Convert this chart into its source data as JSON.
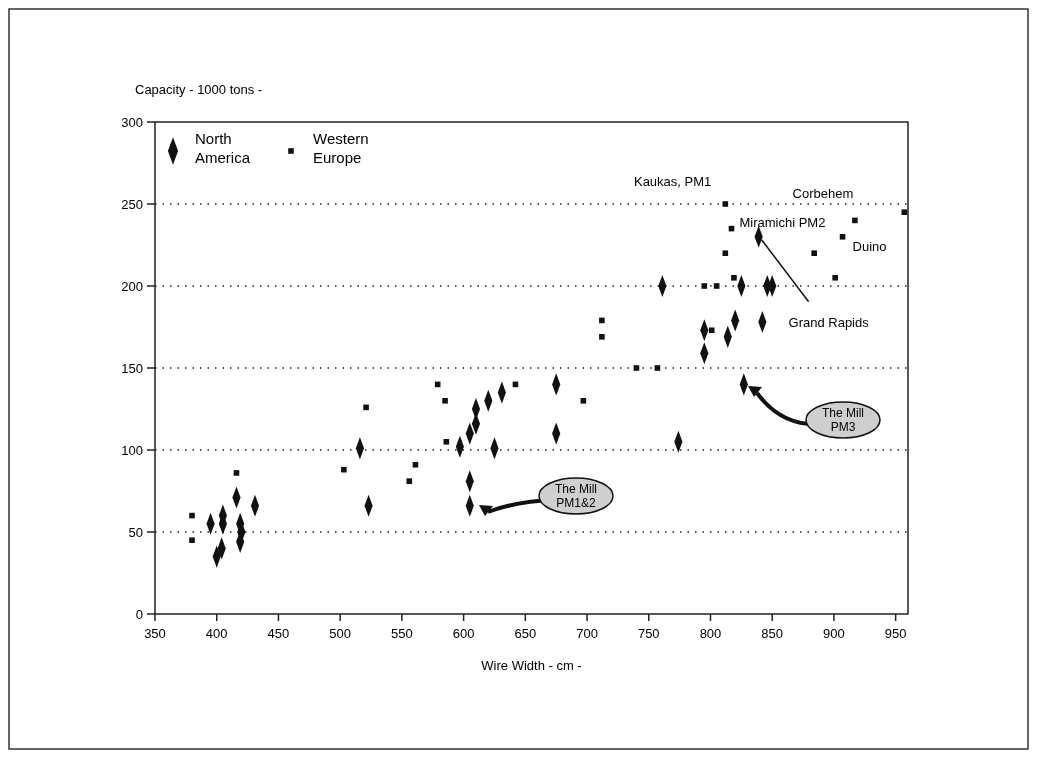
{
  "chart_data": {
    "type": "scatter",
    "xlabel": "Wire Width - cm -",
    "ylabel": "Capacity - 1000 tons -",
    "xlim": [
      350,
      960
    ],
    "xticks": [
      350,
      400,
      450,
      500,
      550,
      600,
      650,
      700,
      750,
      800,
      850,
      900,
      950
    ],
    "ylim": [
      0,
      300
    ],
    "yticks": [
      0,
      50,
      100,
      150,
      200,
      250,
      300
    ],
    "grid": "y",
    "legend": "top left",
    "series": [
      {
        "name": "North America",
        "color": "#111111",
        "marker": "diamond",
        "x": [
          395,
          405,
          405,
          400,
          404,
          416,
          419,
          420,
          419,
          431,
          516,
          523,
          597,
          605,
          610,
          610,
          620,
          605,
          605,
          625,
          631,
          675,
          675,
          774,
          761,
          795,
          795,
          814,
          820,
          842,
          827,
          825,
          846,
          850,
          839
        ],
        "values": [
          55,
          60,
          55,
          35,
          40,
          71,
          55,
          50,
          44,
          66,
          101,
          66,
          102,
          110,
          116,
          125,
          130,
          81,
          66,
          101,
          135,
          140,
          110,
          105,
          200,
          173,
          159,
          169,
          179,
          178,
          140,
          200,
          200,
          200,
          230
        ]
      },
      {
        "name": "Western Europe",
        "color": "#111111",
        "marker": "square",
        "x": [
          380,
          380,
          416,
          503,
          521,
          556,
          561,
          579,
          585,
          586,
          642,
          697,
          712,
          712,
          740,
          757,
          801,
          795,
          805,
          819,
          812,
          817,
          812,
          884,
          907,
          917,
          957,
          901
        ],
        "values": [
          60,
          45,
          86,
          88,
          126,
          81,
          91,
          140,
          130,
          105,
          140,
          130,
          179,
          169,
          150,
          150,
          173,
          200,
          200,
          205,
          250,
          235,
          220,
          220,
          230,
          240,
          245,
          205
        ]
      }
    ],
    "annotations": [
      {
        "text": "Kaukas, PM1",
        "x": 812,
        "y": 250
      },
      {
        "text": "Corbehem",
        "x": 917,
        "y": 240
      },
      {
        "text": "Miramichi PM2",
        "x": 817,
        "y": 235
      },
      {
        "text": "Duino",
        "x": 907,
        "y": 230
      },
      {
        "text": "Grand Rapids",
        "x": 839,
        "y": 230
      },
      "The Mill PM1&2",
      "The Mill PM3"
    ]
  }
}
